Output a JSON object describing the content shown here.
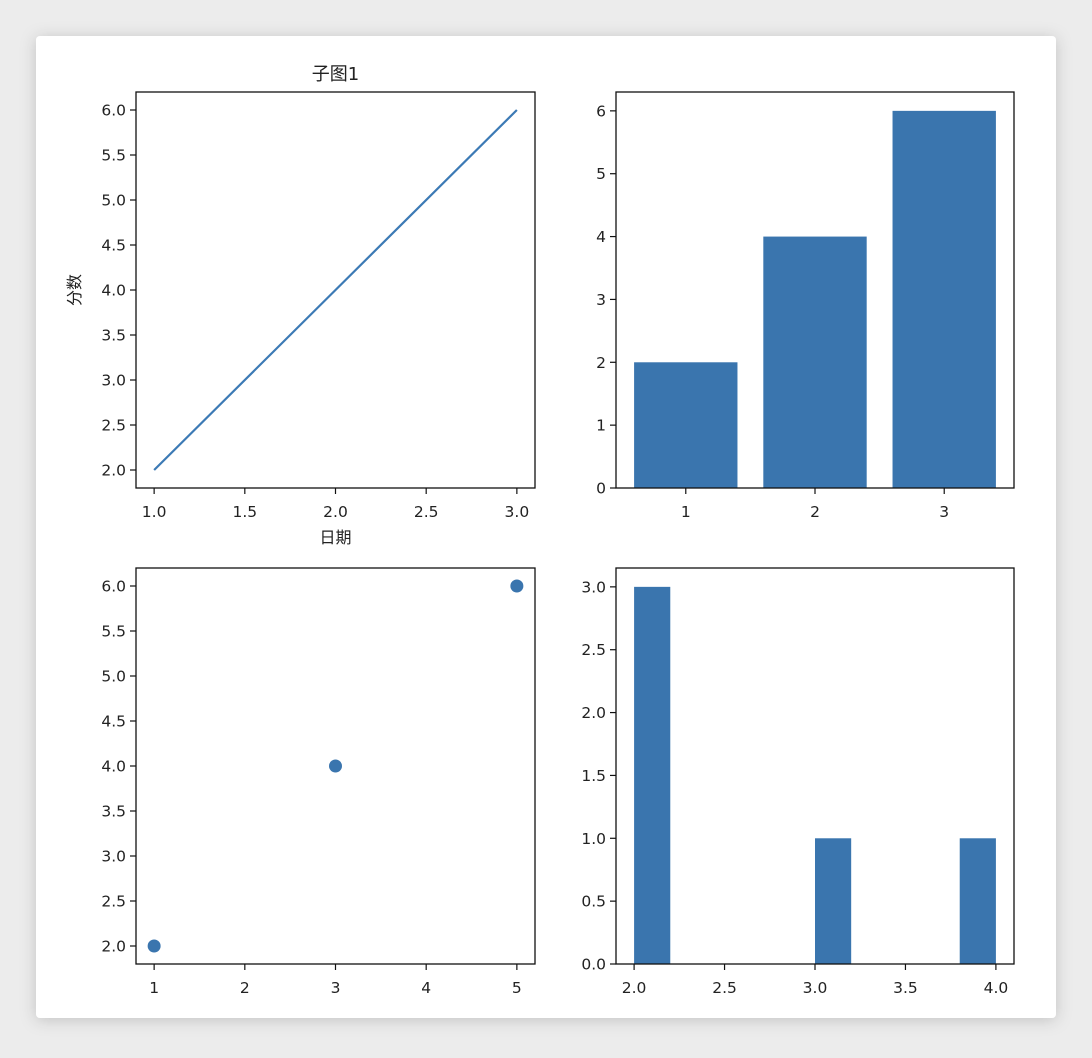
{
  "figure": {
    "bar_color": "#3a75ae",
    "line_color": "#3c7ab5"
  },
  "chart_data": [
    {
      "type": "line",
      "title": "子图1",
      "xlabel": "日期",
      "ylabel": "分数",
      "x": [
        1,
        2,
        3
      ],
      "y": [
        2,
        4,
        6
      ],
      "xlim": [
        0.9,
        3.1
      ],
      "ylim": [
        1.8,
        6.2
      ],
      "xticks": [
        1.0,
        1.5,
        2.0,
        2.5,
        3.0
      ],
      "xtick_labels": [
        "1.0",
        "1.5",
        "2.0",
        "2.5",
        "3.0"
      ],
      "yticks": [
        2.0,
        2.5,
        3.0,
        3.5,
        4.0,
        4.5,
        5.0,
        5.5,
        6.0
      ],
      "ytick_labels": [
        "2.0",
        "2.5",
        "3.0",
        "3.5",
        "4.0",
        "4.5",
        "5.0",
        "5.5",
        "6.0"
      ],
      "grid": false
    },
    {
      "type": "bar",
      "title": "",
      "categories": [
        1,
        2,
        3
      ],
      "values": [
        2,
        4,
        6
      ],
      "bar_width": 0.8,
      "xlim": [
        0.46,
        3.54
      ],
      "ylim": [
        0,
        6.3
      ],
      "xticks": [
        1,
        2,
        3
      ],
      "xtick_labels": [
        "1",
        "2",
        "3"
      ],
      "yticks": [
        0,
        1,
        2,
        3,
        4,
        5,
        6
      ],
      "ytick_labels": [
        "0",
        "1",
        "2",
        "3",
        "4",
        "5",
        "6"
      ],
      "grid": false
    },
    {
      "type": "scatter",
      "title": "",
      "x": [
        1,
        3,
        5
      ],
      "y": [
        2,
        4,
        6
      ],
      "xlim": [
        0.8,
        5.2
      ],
      "ylim": [
        1.8,
        6.2
      ],
      "xticks": [
        1,
        2,
        3,
        4,
        5
      ],
      "xtick_labels": [
        "1",
        "2",
        "3",
        "4",
        "5"
      ],
      "yticks": [
        2.0,
        2.5,
        3.0,
        3.5,
        4.0,
        4.5,
        5.0,
        5.5,
        6.0
      ],
      "ytick_labels": [
        "2.0",
        "2.5",
        "3.0",
        "3.5",
        "4.0",
        "4.5",
        "5.0",
        "5.5",
        "6.0"
      ],
      "grid": false
    },
    {
      "type": "bar",
      "subtype": "histogram",
      "title": "",
      "bins": [
        [
          2.0,
          2.2
        ],
        [
          2.2,
          2.4
        ],
        [
          2.4,
          2.6
        ],
        [
          2.6,
          2.8
        ],
        [
          2.8,
          3.0
        ],
        [
          3.0,
          3.2
        ],
        [
          3.2,
          3.4
        ],
        [
          3.4,
          3.6
        ],
        [
          3.6,
          3.8
        ],
        [
          3.8,
          4.0
        ]
      ],
      "counts": [
        3,
        0,
        0,
        0,
        0,
        1,
        0,
        0,
        0,
        1
      ],
      "xlim": [
        1.9,
        4.1
      ],
      "ylim": [
        0,
        3.15
      ],
      "xticks": [
        2.0,
        2.5,
        3.0,
        3.5,
        4.0
      ],
      "xtick_labels": [
        "2.0",
        "2.5",
        "3.0",
        "3.5",
        "4.0"
      ],
      "yticks": [
        0.0,
        0.5,
        1.0,
        1.5,
        2.0,
        2.5,
        3.0
      ],
      "ytick_labels": [
        "0.0",
        "0.5",
        "1.0",
        "1.5",
        "2.0",
        "2.5",
        "3.0"
      ],
      "grid": false
    }
  ]
}
